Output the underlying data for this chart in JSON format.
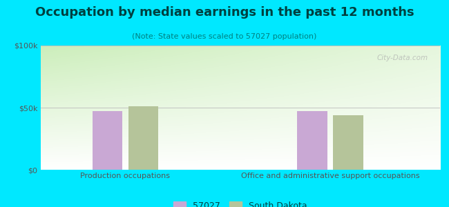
{
  "title": "Occupation by median earnings in the past 12 months",
  "subtitle": "(Note: State values scaled to 57027 population)",
  "categories": [
    "Production occupations",
    "Office and administrative support occupations"
  ],
  "values_57027": [
    47000,
    47500
  ],
  "values_sd": [
    51000,
    44000
  ],
  "bar_color_57027": "#c9a8d4",
  "bar_color_sd": "#b5c49a",
  "ylim": [
    0,
    100000
  ],
  "ytick_labels": [
    "$0",
    "$50k",
    "$100k"
  ],
  "legend_labels": [
    "57027",
    "South Dakota"
  ],
  "background_outer": "#00e8ff",
  "watermark": "City-Data.com",
  "title_fontsize": 13,
  "subtitle_fontsize": 8,
  "tick_fontsize": 8,
  "legend_fontsize": 9,
  "text_color": "#004040",
  "subtitle_color": "#008080",
  "tick_color": "#555555"
}
